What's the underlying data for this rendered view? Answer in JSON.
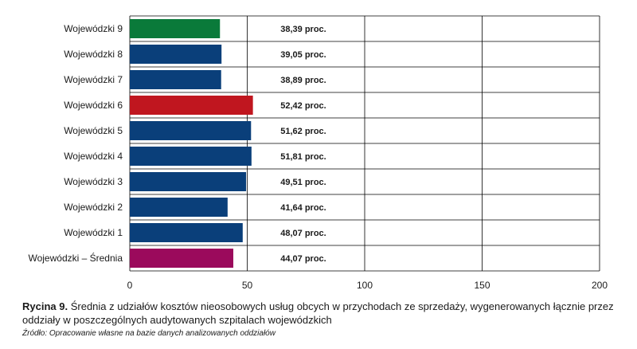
{
  "chart_data": {
    "type": "bar",
    "orientation": "horizontal",
    "categories": [
      "Wojewódzki 9",
      "Wojewódzki 8",
      "Wojewódzki 7",
      "Wojewódzki 6",
      "Wojewódzki 5",
      "Wojewódzki 4",
      "Wojewódzki 3",
      "Wojewódzki 2",
      "Wojewódzki 1",
      "Wojewódzki – Średnia"
    ],
    "values": [
      38.39,
      39.05,
      38.89,
      52.42,
      51.62,
      51.81,
      49.51,
      41.64,
      48.07,
      44.07
    ],
    "data_labels": [
      "38,39 proc.",
      "39,05 proc.",
      "38,89 proc.",
      "52,42 proc.",
      "51,62 proc.",
      "51,81 proc.",
      "49,51 proc.",
      "41,64 proc.",
      "48,07 proc.",
      "44,07 proc."
    ],
    "bar_colors": [
      "#0a7a3a",
      "#0a3f7a",
      "#0a3f7a",
      "#c0161f",
      "#0a3f7a",
      "#0a3f7a",
      "#0a3f7a",
      "#0a3f7a",
      "#0a3f7a",
      "#9b0a5c"
    ],
    "xlim": [
      0,
      200
    ],
    "xticks": [
      0,
      50,
      100,
      150,
      200
    ],
    "grid": true,
    "legend": "none"
  },
  "caption": {
    "label": "Rycina 9.",
    "text": "Średnia z udziałów kosztów nieosobowych usług obcych w przychodach ze sprzedaży, wygenerowanych łącznie przez oddziały w poszczególnych audytowanych szpitalach wojewódzkich"
  },
  "source": "Źródło: Opracowanie własne na bazie danych analizowanych oddziałów"
}
